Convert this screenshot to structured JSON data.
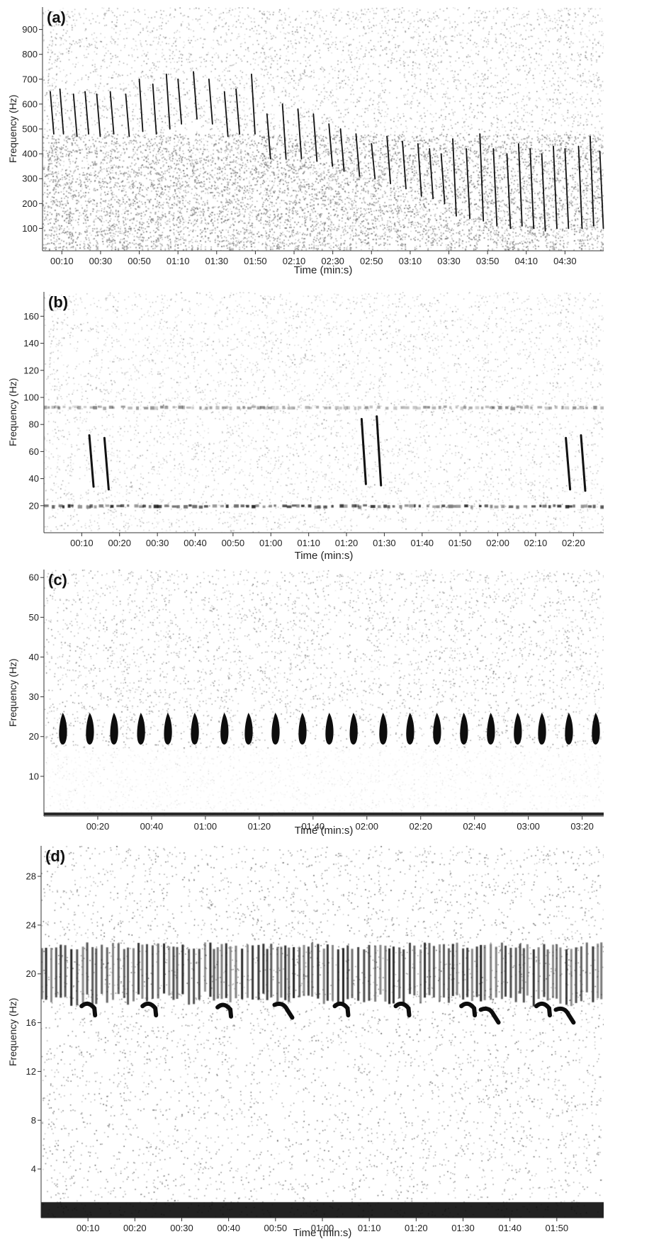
{
  "chart_data": [
    {
      "type": "heatmap",
      "panel": "(a)",
      "xlabel": "Time (min:s)",
      "ylabel": "Frequency (Hz)",
      "x_ticks": [
        "00:10",
        "00:30",
        "00:50",
        "01:10",
        "01:30",
        "01:50",
        "02:10",
        "02:30",
        "02:50",
        "03:10",
        "03:30",
        "03:50",
        "04:10",
        "04:30"
      ],
      "y_ticks": [
        100,
        200,
        300,
        400,
        500,
        600,
        700,
        800,
        900
      ],
      "xlim_seconds": [
        0,
        290
      ],
      "ylim": [
        10,
        990
      ],
      "noise_level": 0.55,
      "low_band": {
        "top": 480,
        "level": 0.35
      },
      "calls": [
        {
          "t": 4,
          "f1": 650,
          "f2": 480
        },
        {
          "t": 9,
          "f1": 660,
          "f2": 480
        },
        {
          "t": 16,
          "f1": 640,
          "f2": 470
        },
        {
          "t": 22,
          "f1": 650,
          "f2": 480
        },
        {
          "t": 28,
          "f1": 640,
          "f2": 470
        },
        {
          "t": 35,
          "f1": 650,
          "f2": 480
        },
        {
          "t": 43,
          "f1": 640,
          "f2": 470
        },
        {
          "t": 50,
          "f1": 700,
          "f2": 490
        },
        {
          "t": 57,
          "f1": 680,
          "f2": 480
        },
        {
          "t": 64,
          "f1": 720,
          "f2": 500
        },
        {
          "t": 70,
          "f1": 700,
          "f2": 520
        },
        {
          "t": 78,
          "f1": 730,
          "f2": 540
        },
        {
          "t": 86,
          "f1": 700,
          "f2": 520
        },
        {
          "t": 94,
          "f1": 650,
          "f2": 470
        },
        {
          "t": 100,
          "f1": 660,
          "f2": 480
        },
        {
          "t": 108,
          "f1": 720,
          "f2": 480
        },
        {
          "t": 116,
          "f1": 560,
          "f2": 380
        },
        {
          "t": 124,
          "f1": 600,
          "f2": 380
        },
        {
          "t": 132,
          "f1": 580,
          "f2": 380
        },
        {
          "t": 140,
          "f1": 560,
          "f2": 370
        },
        {
          "t": 148,
          "f1": 520,
          "f2": 350
        },
        {
          "t": 154,
          "f1": 500,
          "f2": 330
        },
        {
          "t": 162,
          "f1": 480,
          "f2": 310
        },
        {
          "t": 170,
          "f1": 440,
          "f2": 300
        },
        {
          "t": 178,
          "f1": 470,
          "f2": 280
        },
        {
          "t": 186,
          "f1": 450,
          "f2": 260
        },
        {
          "t": 194,
          "f1": 440,
          "f2": 230
        },
        {
          "t": 200,
          "f1": 420,
          "f2": 220
        },
        {
          "t": 206,
          "f1": 400,
          "f2": 200
        },
        {
          "t": 212,
          "f1": 460,
          "f2": 150
        },
        {
          "t": 219,
          "f1": 420,
          "f2": 140
        },
        {
          "t": 226,
          "f1": 480,
          "f2": 130
        },
        {
          "t": 233,
          "f1": 420,
          "f2": 110
        },
        {
          "t": 240,
          "f1": 400,
          "f2": 100
        },
        {
          "t": 246,
          "f1": 440,
          "f2": 110
        },
        {
          "t": 252,
          "f1": 420,
          "f2": 100
        },
        {
          "t": 258,
          "f1": 400,
          "f2": 90
        },
        {
          "t": 264,
          "f1": 430,
          "f2": 100
        },
        {
          "t": 270,
          "f1": 420,
          "f2": 100
        },
        {
          "t": 277,
          "f1": 430,
          "f2": 100
        },
        {
          "t": 283,
          "f1": 470,
          "f2": 110
        },
        {
          "t": 288,
          "f1": 410,
          "f2": 100
        }
      ]
    },
    {
      "type": "heatmap",
      "panel": "(b)",
      "xlabel": "Time (min:s)",
      "ylabel": "Frequency (Hz)",
      "x_ticks": [
        "00:10",
        "00:20",
        "00:30",
        "00:40",
        "00:50",
        "01:00",
        "01:10",
        "01:20",
        "01:30",
        "01:40",
        "01:50",
        "02:00",
        "02:10",
        "02:20"
      ],
      "y_ticks": [
        20,
        40,
        60,
        80,
        100,
        120,
        140,
        160
      ],
      "xlim_seconds": [
        0,
        148
      ],
      "ylim": [
        0,
        178
      ],
      "noise_level": 0.28,
      "bands": [
        {
          "f": 93,
          "level": 0.5
        },
        {
          "f": 20,
          "level": 0.9
        }
      ],
      "calls": [
        {
          "t": 12,
          "f1": 72,
          "f2": 34
        },
        {
          "t": 16,
          "f1": 70,
          "f2": 32
        },
        {
          "t": 84,
          "f1": 84,
          "f2": 36
        },
        {
          "t": 88,
          "f1": 86,
          "f2": 35
        },
        {
          "t": 138,
          "f1": 70,
          "f2": 32
        },
        {
          "t": 142,
          "f1": 72,
          "f2": 31
        }
      ]
    },
    {
      "type": "heatmap",
      "panel": "(c)",
      "xlabel": "Time (min:s)",
      "ylabel": "Frequency (Hz)",
      "x_ticks": [
        "00:20",
        "00:40",
        "01:00",
        "01:20",
        "01:40",
        "02:00",
        "02:20",
        "02:40",
        "03:00",
        "03:20"
      ],
      "y_ticks": [
        10,
        20,
        30,
        40,
        50,
        60
      ],
      "xlim_seconds": [
        0,
        208
      ],
      "ylim": [
        0,
        62
      ],
      "noise_level": 0.45,
      "low_band": {
        "top": 17,
        "level": 0.05
      },
      "call_f_range": [
        18,
        26
      ],
      "calls": [
        7,
        17,
        26,
        36,
        46,
        56,
        67,
        76,
        86,
        96,
        106,
        115,
        126,
        136,
        146,
        156,
        166,
        176,
        185,
        195,
        205
      ]
    },
    {
      "type": "heatmap",
      "panel": "(d)",
      "xlabel": "Time (min:s)",
      "ylabel": "Frequency (Hz)",
      "x_ticks": [
        "00:10",
        "00:20",
        "00:30",
        "00:40",
        "00:50",
        "01:00",
        "01:10",
        "01:20",
        "01:30",
        "01:40",
        "01:50"
      ],
      "y_ticks": [
        4,
        8,
        12,
        16,
        20,
        24,
        28
      ],
      "xlim_seconds": [
        0,
        120
      ],
      "ylim": [
        0,
        30.5
      ],
      "noise_level": 0.45,
      "pulse_band": [
        18,
        22
      ],
      "calls": [
        {
          "t": 10,
          "f": 17.3,
          "kind": "hook"
        },
        {
          "t": 23,
          "f": 17.3,
          "kind": "hook"
        },
        {
          "t": 39,
          "f": 17.2,
          "kind": "hook"
        },
        {
          "t": 51,
          "f": 17.4,
          "kind": "long"
        },
        {
          "t": 64,
          "f": 17.3,
          "kind": "hook"
        },
        {
          "t": 77,
          "f": 17.3,
          "kind": "hook"
        },
        {
          "t": 91,
          "f": 17.3,
          "kind": "hook"
        },
        {
          "t": 95,
          "f": 17.0,
          "kind": "long"
        },
        {
          "t": 107,
          "f": 17.3,
          "kind": "hook"
        },
        {
          "t": 111,
          "f": 17.0,
          "kind": "long"
        }
      ]
    }
  ]
}
